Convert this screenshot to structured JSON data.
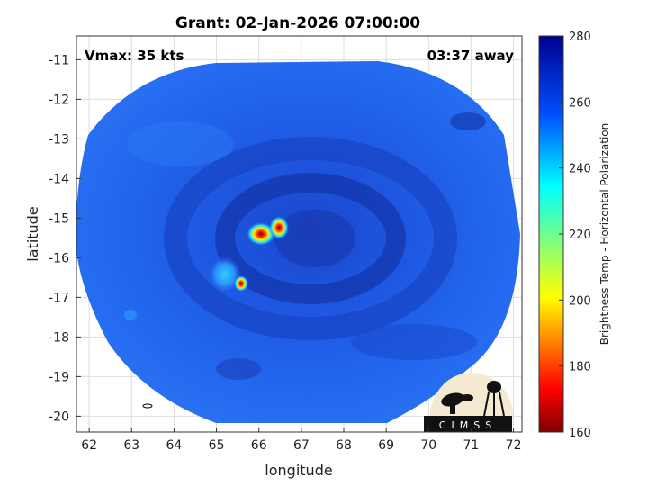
{
  "title": "Grant: 02-Jan-2026 07:00:00",
  "vmax_label": "Vmax: 35 kts",
  "time_away": "03:37 away",
  "x_axis": {
    "label": "longitude",
    "range": [
      61.7,
      72.2
    ],
    "ticks": [
      62,
      63,
      64,
      65,
      66,
      67,
      68,
      69,
      70,
      71,
      72
    ]
  },
  "y_axis": {
    "label": "latitude",
    "range": [
      -20.4,
      -10.4
    ],
    "ticks": [
      -11,
      -12,
      -13,
      -14,
      -15,
      -16,
      -17,
      -18,
      -19,
      -20
    ]
  },
  "colorbar": {
    "label": "Brightness Temp - Horizontal Polarization",
    "range": [
      160,
      280
    ],
    "ticks": [
      280,
      260,
      240,
      220,
      200,
      180,
      160
    ]
  },
  "logo_text": "CIMSS",
  "colors": {
    "swath_base": "#1f5fe8",
    "eye_dark": "#1238b8",
    "convection_hot": "#e6261a"
  }
}
